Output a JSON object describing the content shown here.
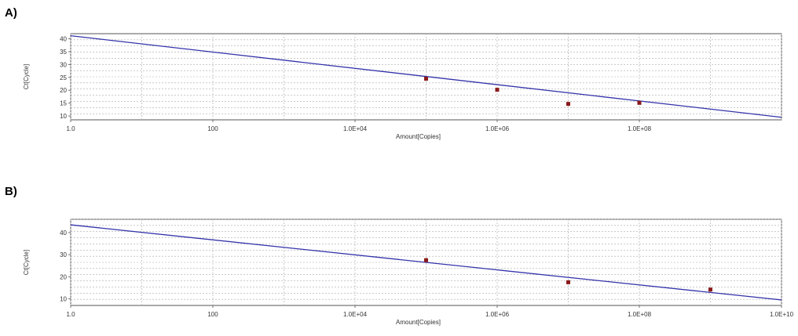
{
  "chart_data": [
    {
      "type": "scatter",
      "panel_label": "A)",
      "xlabel": "Amount[Copies]",
      "ylabel": "Ct[Cycle]",
      "x_scale": "log",
      "xlim": [
        1,
        10000000000
      ],
      "ylim": [
        8.5,
        42
      ],
      "x_ticks": [
        {
          "value": 1,
          "label": "1.0"
        },
        {
          "value": 100,
          "label": "100"
        },
        {
          "value": 10000,
          "label": "1.0E+04"
        },
        {
          "value": 1000000,
          "label": "1.0E+06"
        },
        {
          "value": 100000000,
          "label": "1.0E+08"
        }
      ],
      "y_ticks": [
        10,
        15,
        20,
        25,
        30,
        35,
        40
      ],
      "grid": true,
      "points": [
        {
          "x": 100000,
          "y": 24.5
        },
        {
          "x": 1000000,
          "y": 20.2
        },
        {
          "x": 10000000,
          "y": 14.7
        },
        {
          "x": 100000000,
          "y": 15.1
        }
      ],
      "fit_line": {
        "x": [
          1,
          10000000000
        ],
        "y": [
          41.2,
          9.5
        ]
      },
      "colors": {
        "points": "#8b1a1a",
        "line": "#3333aa"
      }
    },
    {
      "type": "scatter",
      "panel_label": "B)",
      "xlabel": "Amount[Copies]",
      "ylabel": "Ct[Cycle]",
      "x_scale": "log",
      "xlim": [
        1,
        10000000000
      ],
      "ylim": [
        7,
        46
      ],
      "x_ticks": [
        {
          "value": 1,
          "label": "1.0"
        },
        {
          "value": 100,
          "label": "100"
        },
        {
          "value": 10000,
          "label": "1.0E+04"
        },
        {
          "value": 1000000,
          "label": "1.0E+06"
        },
        {
          "value": 100000000,
          "label": "1.0E+08"
        },
        {
          "value": 10000000000,
          "label": "1.0E+10"
        }
      ],
      "y_ticks": [
        10,
        20,
        30,
        40
      ],
      "grid": true,
      "points": [
        {
          "x": 100000,
          "y": 27.5
        },
        {
          "x": 10000000,
          "y": 17.5
        },
        {
          "x": 1000000000,
          "y": 14.2
        }
      ],
      "fit_line": {
        "x": [
          1,
          10000000000
        ],
        "y": [
          43.5,
          9.5
        ]
      },
      "colors": {
        "points": "#8b1a1a",
        "line": "#3333aa"
      }
    }
  ]
}
